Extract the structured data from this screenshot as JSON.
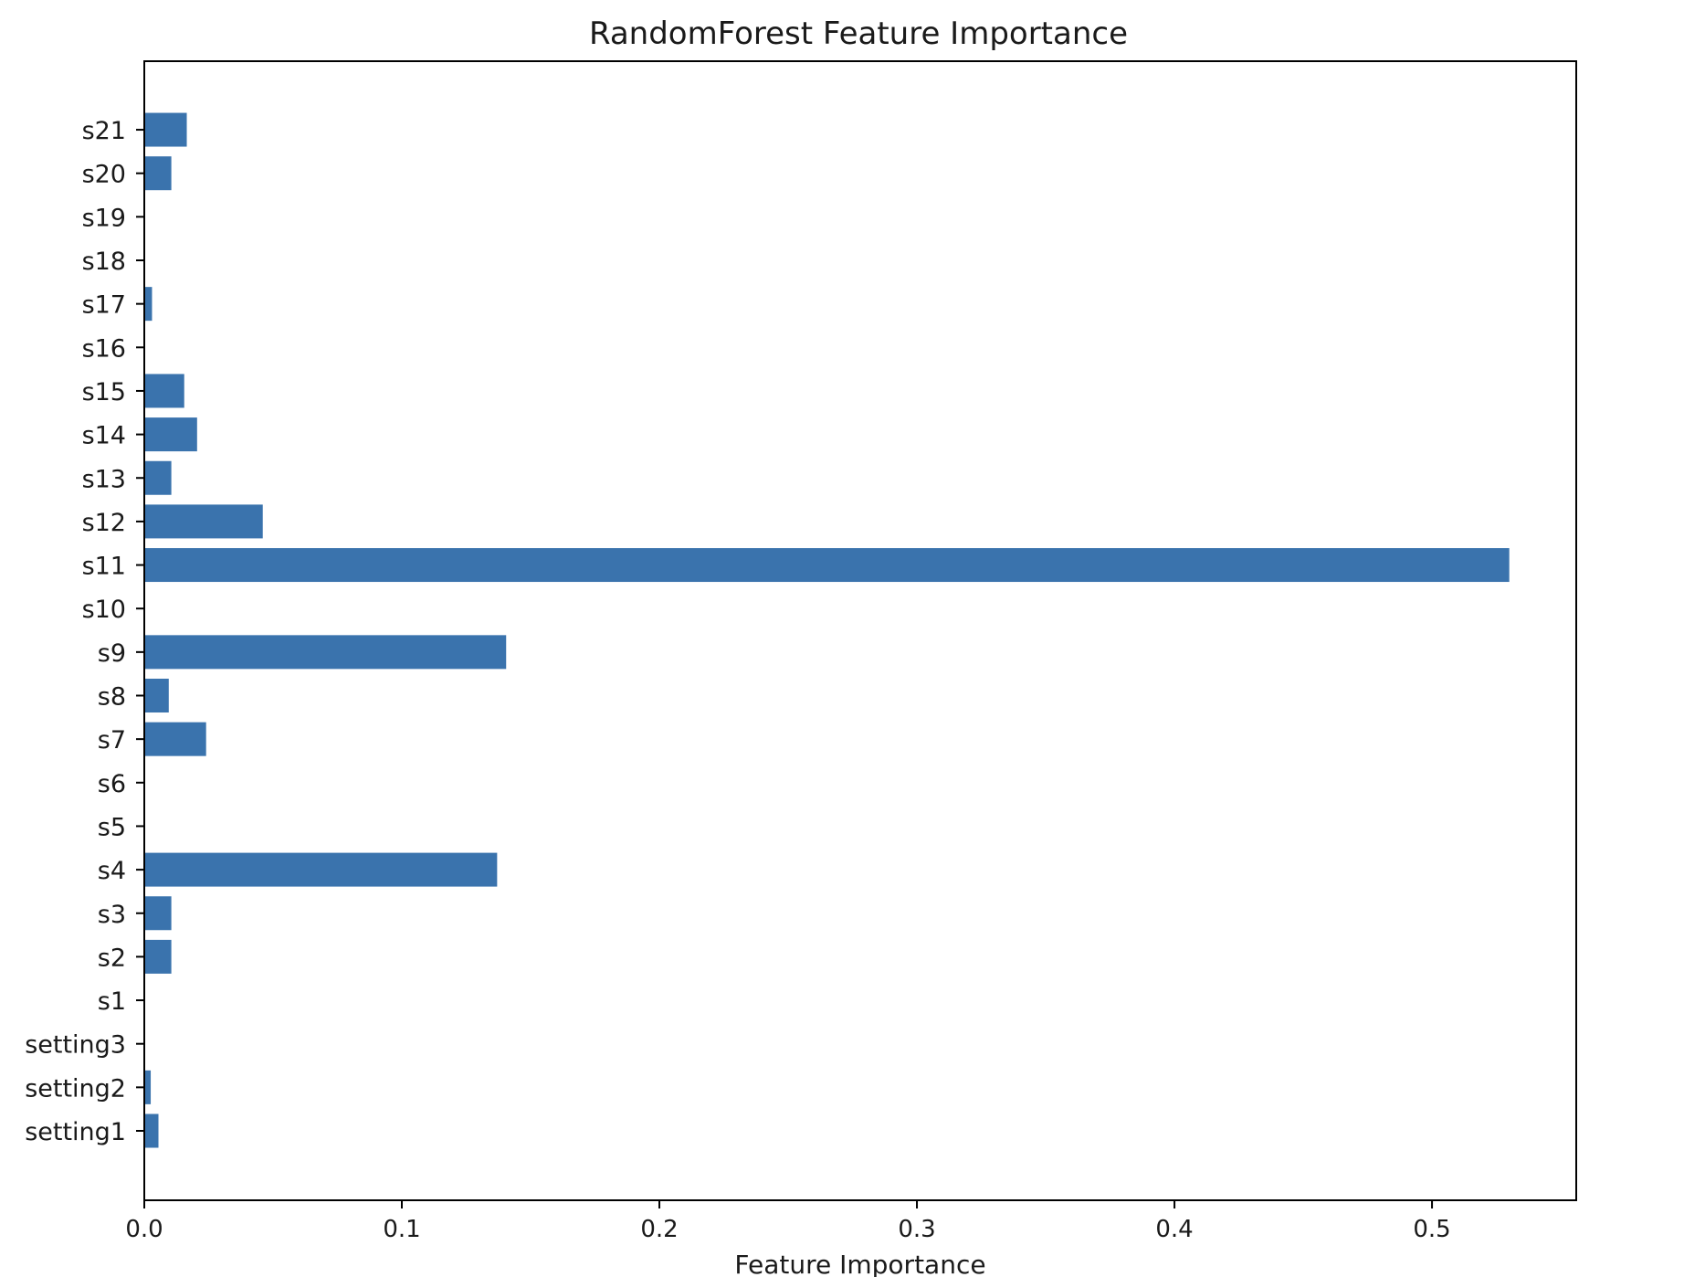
{
  "chart_data": {
    "type": "bar",
    "orientation": "horizontal",
    "title": "RandomForest Feature Importance",
    "xlabel": "Feature Importance",
    "ylabel": "",
    "xlim": [
      0,
      0.556
    ],
    "categories": [
      "setting1",
      "setting2",
      "setting3",
      "s1",
      "s2",
      "s3",
      "s4",
      "s5",
      "s6",
      "s7",
      "s8",
      "s9",
      "s10",
      "s11",
      "s12",
      "s13",
      "s14",
      "s15",
      "s16",
      "s17",
      "s18",
      "s19",
      "s20",
      "s21"
    ],
    "values": [
      0.0055,
      0.0025,
      0.0,
      0.0,
      0.0105,
      0.0105,
      0.137,
      0.0,
      0.0,
      0.024,
      0.0095,
      0.1405,
      0.0,
      0.53,
      0.046,
      0.0105,
      0.0205,
      0.0155,
      0.0,
      0.003,
      0.0,
      0.0,
      0.0105,
      0.0165
    ],
    "xticks": [
      "0.0",
      "0.1",
      "0.2",
      "0.3",
      "0.4",
      "0.5"
    ],
    "xtick_values": [
      0.0,
      0.1,
      0.2,
      0.3,
      0.4,
      0.5
    ],
    "grid": false,
    "legend": "none",
    "colors": {
      "bar": "#3a73ad",
      "axis": "#000000",
      "text": "#1a1a1a"
    }
  }
}
